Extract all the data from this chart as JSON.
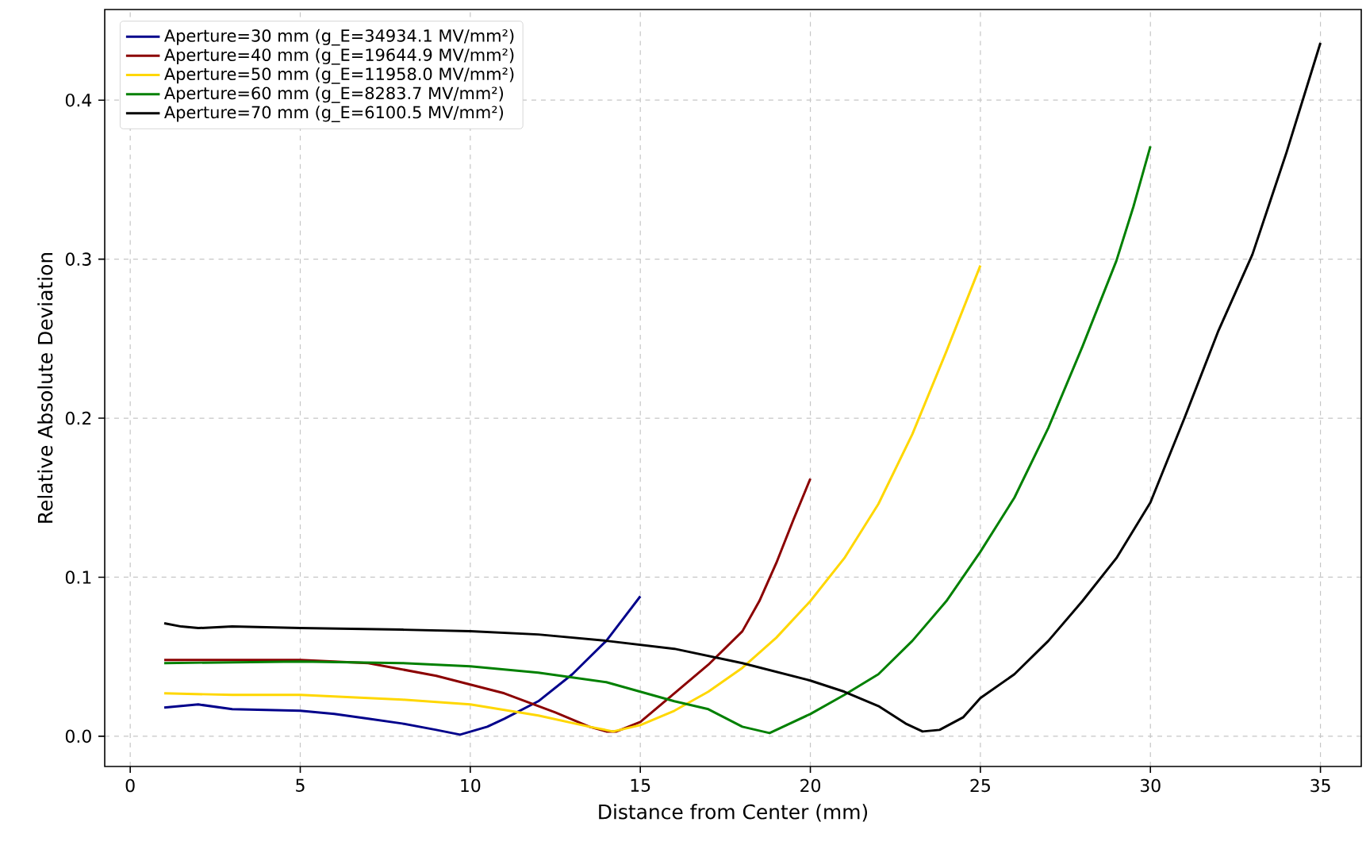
{
  "chart_data": {
    "type": "line",
    "xlabel": "Distance from Center (mm)",
    "ylabel": "Relative Absolute Deviation",
    "xlim": [
      -0.75,
      36.2
    ],
    "ylim": [
      -0.019,
      0.457
    ],
    "xticks": [
      0,
      5,
      10,
      15,
      20,
      25,
      30,
      35
    ],
    "yticks": [
      {
        "value": 0,
        "label": "0.0"
      },
      0.1,
      0.2,
      0.3,
      0.4
    ],
    "grid": true,
    "legend": "top left",
    "line_style": "solid",
    "marker": "none",
    "series": [
      {
        "name": "Aperture=30 mm (g_E=34934.1 MV/mm²)",
        "color": "#00008b",
        "x": [
          1,
          2,
          3,
          5,
          6,
          7,
          8,
          9,
          9.7,
          10.5,
          11,
          12,
          13,
          14,
          15
        ],
        "values": [
          0.018,
          0.02,
          0.017,
          0.016,
          0.014,
          0.011,
          0.008,
          0.004,
          0.001,
          0.006,
          0.011,
          0.022,
          0.039,
          0.06,
          0.088
        ]
      },
      {
        "name": "Aperture=40 mm (g_E=19644.9 MV/mm²)",
        "color": "#8b0000",
        "x": [
          1,
          5,
          7,
          9,
          11,
          12.5,
          13.5,
          14,
          14.3,
          15,
          16,
          17,
          18,
          18.5,
          19,
          19.5,
          20
        ],
        "values": [
          0.048,
          0.048,
          0.046,
          0.038,
          0.027,
          0.015,
          0.006,
          0.003,
          0.003,
          0.009,
          0.027,
          0.045,
          0.066,
          0.085,
          0.109,
          0.136,
          0.162
        ]
      },
      {
        "name": "Aperture=50 mm (g_E=11958.0 MV/mm²)",
        "color": "#ffd700",
        "x": [
          1,
          3,
          5,
          8,
          10,
          12,
          13.5,
          14.2,
          15,
          16,
          17,
          18,
          19,
          20,
          21,
          22,
          23,
          24,
          25
        ],
        "values": [
          0.027,
          0.026,
          0.026,
          0.023,
          0.02,
          0.013,
          0.006,
          0.003,
          0.007,
          0.016,
          0.028,
          0.043,
          0.062,
          0.085,
          0.112,
          0.146,
          0.19,
          0.242,
          0.296
        ]
      },
      {
        "name": "Aperture=60 mm (g_E=8283.7 MV/mm²)",
        "color": "#008000",
        "x": [
          1,
          5,
          8,
          10,
          12,
          14,
          16,
          17,
          18,
          18.8,
          20,
          21,
          22,
          23,
          24,
          25,
          26,
          27,
          28,
          29,
          29.5,
          30
        ],
        "values": [
          0.046,
          0.047,
          0.046,
          0.044,
          0.04,
          0.034,
          0.022,
          0.017,
          0.006,
          0.002,
          0.014,
          0.026,
          0.039,
          0.06,
          0.085,
          0.116,
          0.15,
          0.194,
          0.245,
          0.299,
          0.333,
          0.371
        ]
      },
      {
        "name": "Aperture=70 mm (g_E=6100.5 MV/mm²)",
        "color": "#000000",
        "x": [
          1,
          1.5,
          2,
          3,
          5,
          8,
          10,
          12,
          14,
          16,
          18,
          20,
          21,
          22,
          22.8,
          23.3,
          23.8,
          24.5,
          25,
          26,
          27,
          28,
          29,
          30,
          31,
          32,
          33,
          34,
          35
        ],
        "values": [
          0.071,
          0.069,
          0.068,
          0.069,
          0.068,
          0.067,
          0.066,
          0.064,
          0.06,
          0.055,
          0.046,
          0.035,
          0.028,
          0.019,
          0.008,
          0.003,
          0.004,
          0.012,
          0.024,
          0.039,
          0.06,
          0.085,
          0.112,
          0.147,
          0.2,
          0.255,
          0.303,
          0.367,
          0.436
        ]
      }
    ]
  }
}
